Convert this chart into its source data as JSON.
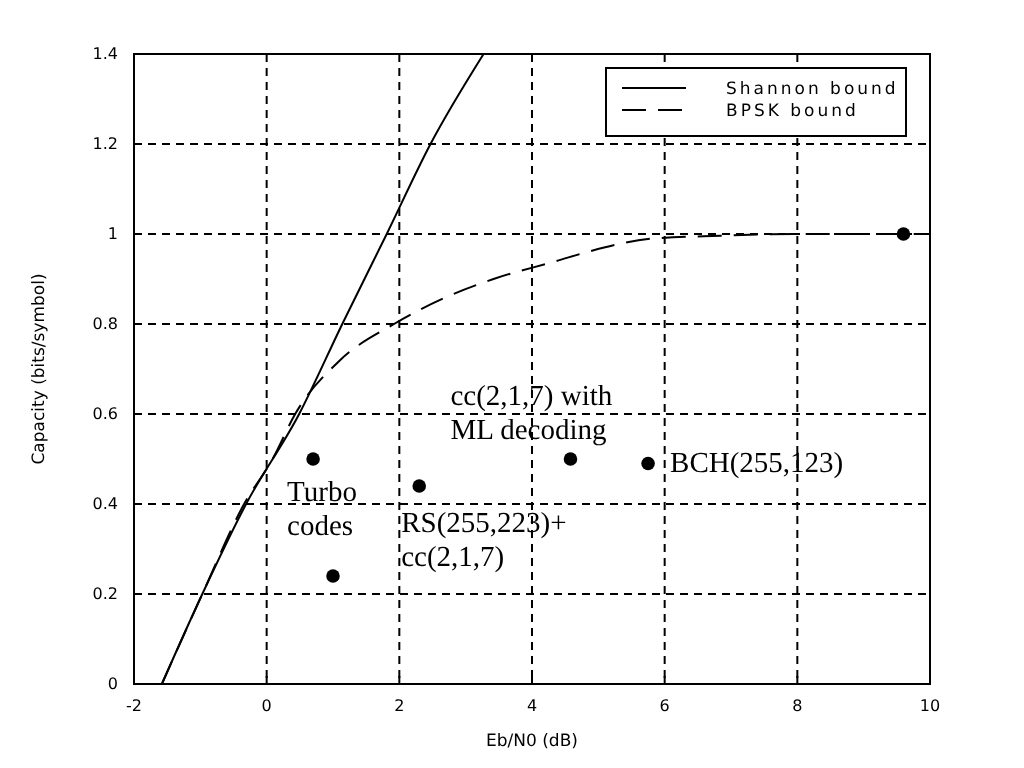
{
  "chart_data": {
    "type": "line",
    "xlabel": "Eb/N0 (dB)",
    "ylabel": "Capacity (bits/symbol)",
    "xlim": [
      -2,
      10
    ],
    "ylim": [
      0,
      1.4
    ],
    "xticks": [
      -2,
      0,
      2,
      4,
      6,
      8,
      10
    ],
    "yticks": [
      0,
      0.2,
      0.4,
      0.6,
      0.8,
      1,
      1.2,
      1.4
    ],
    "grid": true,
    "legend": "top right",
    "series": [
      {
        "name": "Shannon bound",
        "color": "#000000",
        "line_style": "solid",
        "x": [
          -1.58,
          -0.97,
          -0.31,
          0.49,
          1.14,
          1.81,
          2.47,
          3.27
        ],
        "values": [
          0,
          0.2,
          0.4,
          0.6,
          0.8,
          1,
          1.2,
          1.4
        ]
      },
      {
        "name": "BPSK bound",
        "color": "#000000",
        "line_style": "dashed",
        "x": [
          -1.58,
          -0.97,
          -0.34,
          0.09,
          0.43,
          1.11,
          1.92,
          2.71,
          3.42,
          4.37,
          4.83,
          5.83,
          6.84,
          8,
          10
        ],
        "values": [
          0,
          0.2,
          0.4,
          0.5,
          0.6,
          0.72,
          0.8,
          0.86,
          0.9,
          0.94,
          0.96,
          0.99,
          0.996,
          1,
          1
        ]
      },
      {
        "type": "scatter",
        "color": "#000000",
        "marker": "circle",
        "x": [
          0.7,
          1.0,
          2.3,
          4.58,
          5.75,
          9.6
        ],
        "values": [
          0.5,
          0.24,
          0.44,
          0.5,
          0.49,
          1
        ]
      }
    ],
    "annotations": [
      {
        "text": "Turbo\ncodes",
        "x": 0.7,
        "y": 0.5
      },
      {
        "text": "RS(255,223)+\ncc(2,1,7)",
        "x": 2.3,
        "y": 0.44
      },
      {
        "text": "cc(2,1,7) with\nML decoding",
        "x": 4.58,
        "y": 0.5
      },
      {
        "text": "BCH(255,123)",
        "x": 5.75,
        "y": 0.49
      }
    ]
  }
}
